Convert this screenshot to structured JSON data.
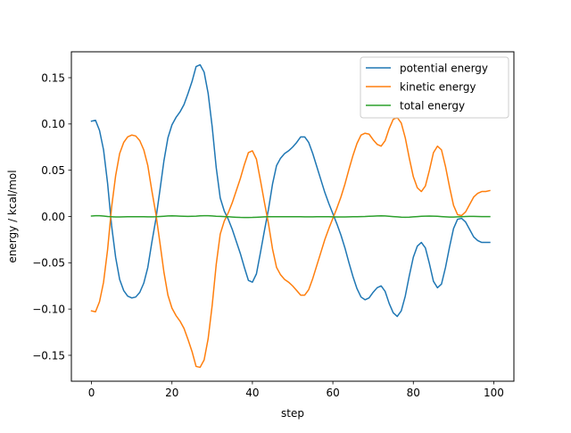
{
  "chart_data": {
    "type": "line",
    "title": "",
    "xlabel": "step",
    "ylabel": "energy / kcal/mol",
    "xlim": [
      -5,
      105
    ],
    "ylim": [
      -0.178,
      0.178
    ],
    "xticks": [
      0,
      20,
      40,
      60,
      80,
      100
    ],
    "yticks": [
      -0.15,
      -0.1,
      -0.05,
      0.0,
      0.05,
      0.1,
      0.15
    ],
    "xtick_labels": [
      "0",
      "20",
      "40",
      "60",
      "80",
      "100"
    ],
    "ytick_labels": [
      "−0.15",
      "−0.10",
      "−0.05",
      "0.00",
      "0.05",
      "0.10",
      "0.15"
    ],
    "grid": false,
    "legend": "top-right",
    "x": [
      0,
      1,
      2,
      3,
      4,
      5,
      6,
      7,
      8,
      9,
      10,
      11,
      12,
      13,
      14,
      15,
      16,
      17,
      18,
      19,
      20,
      21,
      22,
      23,
      24,
      25,
      26,
      27,
      28,
      29,
      30,
      31,
      32,
      33,
      34,
      35,
      36,
      37,
      38,
      39,
      40,
      41,
      42,
      43,
      44,
      45,
      46,
      47,
      48,
      49,
      50,
      51,
      52,
      53,
      54,
      55,
      56,
      57,
      58,
      59,
      60,
      61,
      62,
      63,
      64,
      65,
      66,
      67,
      68,
      69,
      70,
      71,
      72,
      73,
      74,
      75,
      76,
      77,
      78,
      79,
      80,
      81,
      82,
      83,
      84,
      85,
      86,
      87,
      88,
      89,
      90,
      91,
      92,
      93,
      94,
      95,
      96,
      97,
      98,
      99
    ],
    "series": [
      {
        "name": "potential energy",
        "color": "#1f77b4",
        "values": [
          0.103,
          0.104,
          0.093,
          0.072,
          0.036,
          -0.01,
          -0.044,
          -0.068,
          -0.08,
          -0.086,
          -0.088,
          -0.087,
          -0.082,
          -0.072,
          -0.055,
          -0.028,
          -0.003,
          0.028,
          0.06,
          0.085,
          0.099,
          0.107,
          0.113,
          0.121,
          0.133,
          0.146,
          0.162,
          0.164,
          0.156,
          0.133,
          0.097,
          0.053,
          0.02,
          0.006,
          -0.003,
          -0.014,
          -0.027,
          -0.04,
          -0.055,
          -0.069,
          -0.071,
          -0.062,
          -0.039,
          -0.015,
          0.008,
          0.035,
          0.055,
          0.063,
          0.068,
          0.071,
          0.075,
          0.08,
          0.086,
          0.086,
          0.08,
          0.068,
          0.054,
          0.04,
          0.026,
          0.014,
          0.003,
          -0.008,
          -0.02,
          -0.034,
          -0.05,
          -0.065,
          -0.078,
          -0.087,
          -0.09,
          -0.088,
          -0.082,
          -0.077,
          -0.075,
          -0.081,
          -0.094,
          -0.104,
          -0.108,
          -0.102,
          -0.086,
          -0.064,
          -0.044,
          -0.032,
          -0.028,
          -0.034,
          -0.051,
          -0.07,
          -0.077,
          -0.073,
          -0.055,
          -0.033,
          -0.013,
          -0.003,
          -0.002,
          -0.006,
          -0.014,
          -0.022,
          -0.026,
          -0.028,
          -0.028,
          -0.028
        ]
      },
      {
        "name": "kinetic energy",
        "color": "#ff7f0e",
        "values": [
          -0.102,
          -0.103,
          -0.092,
          -0.071,
          -0.036,
          0.01,
          0.044,
          0.068,
          0.08,
          0.086,
          0.088,
          0.087,
          0.082,
          0.072,
          0.055,
          0.028,
          0.003,
          -0.028,
          -0.06,
          -0.085,
          -0.099,
          -0.107,
          -0.113,
          -0.121,
          -0.133,
          -0.146,
          -0.162,
          -0.163,
          -0.155,
          -0.132,
          -0.096,
          -0.052,
          -0.019,
          -0.005,
          0.004,
          0.015,
          0.028,
          0.041,
          0.056,
          0.069,
          0.071,
          0.062,
          0.039,
          0.015,
          -0.008,
          -0.035,
          -0.055,
          -0.063,
          -0.068,
          -0.071,
          -0.075,
          -0.08,
          -0.085,
          -0.085,
          -0.079,
          -0.067,
          -0.053,
          -0.039,
          -0.025,
          -0.013,
          -0.002,
          0.009,
          0.021,
          0.035,
          0.051,
          0.066,
          0.079,
          0.088,
          0.09,
          0.089,
          0.083,
          0.078,
          0.076,
          0.082,
          0.095,
          0.105,
          0.107,
          0.101,
          0.085,
          0.063,
          0.043,
          0.031,
          0.027,
          0.033,
          0.05,
          0.069,
          0.076,
          0.072,
          0.054,
          0.032,
          0.012,
          0.002,
          0.001,
          0.005,
          0.013,
          0.021,
          0.025,
          0.027,
          0.027,
          0.028
        ]
      },
      {
        "name": "total energy",
        "color": "#2ca02c",
        "values": [
          0.0005,
          0.0008,
          0.0008,
          0.0005,
          0.0,
          -0.0003,
          -0.0005,
          -0.0005,
          -0.0004,
          -0.0003,
          -0.0002,
          -0.0002,
          -0.0002,
          -0.0003,
          -0.0004,
          -0.0004,
          -0.0003,
          0.0,
          0.0003,
          0.0006,
          0.0007,
          0.0006,
          0.0004,
          0.0002,
          0.0001,
          0.0002,
          0.0004,
          0.0007,
          0.0008,
          0.0008,
          0.0006,
          0.0003,
          0.0001,
          -0.0001,
          -0.0003,
          -0.0006,
          -0.0008,
          -0.001,
          -0.0011,
          -0.0011,
          -0.001,
          -0.0008,
          -0.0006,
          -0.0004,
          -0.0003,
          -0.0002,
          -0.0002,
          -0.0002,
          -0.0002,
          -0.0002,
          -0.0002,
          -0.0002,
          -0.0003,
          -0.0004,
          -0.0004,
          -0.0004,
          -0.0003,
          -0.0003,
          -0.0003,
          -0.0003,
          -0.0004,
          -0.0005,
          -0.0005,
          -0.0005,
          -0.0004,
          -0.0003,
          -0.0002,
          -0.0001,
          0.0,
          0.0002,
          0.0004,
          0.0006,
          0.0007,
          0.0006,
          0.0003,
          -0.0001,
          -0.0004,
          -0.0007,
          -0.0008,
          -0.0007,
          -0.0004,
          -0.0001,
          0.0002,
          0.0004,
          0.0005,
          0.0004,
          0.0002,
          -0.0001,
          -0.0004,
          -0.0006,
          -0.0006,
          -0.0004,
          -0.0002,
          0.0,
          0.0001,
          0.0001,
          0.0,
          -0.0001,
          -0.0001,
          -0.0001
        ]
      }
    ]
  }
}
